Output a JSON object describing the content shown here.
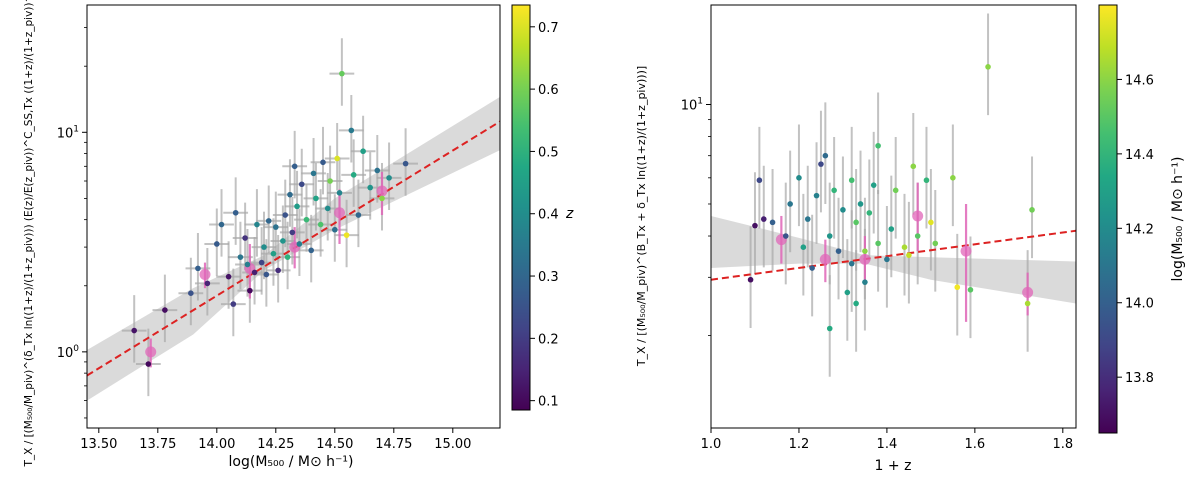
{
  "chart_data": [
    {
      "type": "scatter",
      "title": "",
      "xlabel": "log(M500 / M⊙ h⁻¹)",
      "ylabel": "T_X / [(M500/Mpiv)^(δTx ln((1+z)/(1+zpiv))) (E(z)/E(zpiv))^(C_SS,Tx) ((1+z)/(1+zpiv))^(γTx)]",
      "xscale": "linear",
      "yscale": "log",
      "xlim": [
        13.45,
        15.2
      ],
      "ylim": [
        0.45,
        38
      ],
      "xticks": [
        "13.50",
        "13.75",
        "14.00",
        "14.25",
        "14.50",
        "14.75",
        "15.00"
      ],
      "yticks": [
        "10^0",
        "10^1"
      ],
      "colorbar": {
        "label": "z",
        "range": [
          0.085,
          0.735
        ],
        "ticks": [
          "0.1",
          "0.2",
          "0.3",
          "0.4",
          "0.5",
          "0.6",
          "0.7"
        ]
      },
      "fit_line": {
        "style": "dashed",
        "color": "#dd2222",
        "points": [
          [
            13.45,
            0.78
          ],
          [
            15.2,
            11.2
          ]
        ]
      },
      "confidence_band": {
        "color": "#d3d3d3",
        "points": [
          [
            13.45,
            0.6,
            1.02
          ],
          [
            13.9,
            1.2,
            1.95
          ],
          [
            14.2,
            2.35,
            2.75
          ],
          [
            14.5,
            3.6,
            5.0
          ],
          [
            15.2,
            8.3,
            14.5
          ]
        ]
      },
      "binned_means": [
        {
          "x": 13.72,
          "y": 1.0,
          "yerr": [
            0.85,
            1.15
          ]
        },
        {
          "x": 13.95,
          "y": 2.25,
          "yerr": [
            1.95,
            2.55
          ]
        },
        {
          "x": 14.14,
          "y": 2.4,
          "yerr": [
            1.75,
            3.1
          ]
        },
        {
          "x": 14.33,
          "y": 3.0,
          "yerr": [
            2.4,
            3.7
          ]
        },
        {
          "x": 14.52,
          "y": 4.3,
          "yerr": [
            3.1,
            5.5
          ]
        },
        {
          "x": 14.7,
          "y": 5.4,
          "yerr": [
            4.2,
            6.6
          ]
        }
      ],
      "points": [
        {
          "x": 13.65,
          "y": 1.25,
          "z": 0.12
        },
        {
          "x": 13.71,
          "y": 0.88,
          "z": 0.1
        },
        {
          "x": 13.78,
          "y": 1.55,
          "z": 0.11
        },
        {
          "x": 13.89,
          "y": 1.85,
          "z": 0.25
        },
        {
          "x": 13.92,
          "y": 2.4,
          "z": 0.28
        },
        {
          "x": 13.96,
          "y": 2.05,
          "z": 0.15
        },
        {
          "x": 14.0,
          "y": 3.1,
          "z": 0.27
        },
        {
          "x": 14.02,
          "y": 3.8,
          "z": 0.3
        },
        {
          "x": 14.05,
          "y": 2.2,
          "z": 0.12
        },
        {
          "x": 14.07,
          "y": 1.65,
          "z": 0.2
        },
        {
          "x": 14.08,
          "y": 4.3,
          "z": 0.28
        },
        {
          "x": 14.1,
          "y": 2.7,
          "z": 0.34
        },
        {
          "x": 14.12,
          "y": 3.3,
          "z": 0.18
        },
        {
          "x": 14.13,
          "y": 2.5,
          "z": 0.36
        },
        {
          "x": 14.14,
          "y": 1.9,
          "z": 0.1
        },
        {
          "x": 14.16,
          "y": 2.3,
          "z": 0.14
        },
        {
          "x": 14.17,
          "y": 3.8,
          "z": 0.38
        },
        {
          "x": 14.19,
          "y": 2.55,
          "z": 0.22
        },
        {
          "x": 14.2,
          "y": 3.0,
          "z": 0.4
        },
        {
          "x": 14.21,
          "y": 2.25,
          "z": 0.26
        },
        {
          "x": 14.22,
          "y": 3.95,
          "z": 0.3
        },
        {
          "x": 14.24,
          "y": 2.8,
          "z": 0.45
        },
        {
          "x": 14.25,
          "y": 3.7,
          "z": 0.33
        },
        {
          "x": 14.26,
          "y": 2.35,
          "z": 0.17
        },
        {
          "x": 14.28,
          "y": 3.2,
          "z": 0.42
        },
        {
          "x": 14.29,
          "y": 4.2,
          "z": 0.25
        },
        {
          "x": 14.3,
          "y": 2.7,
          "z": 0.5
        },
        {
          "x": 14.31,
          "y": 5.2,
          "z": 0.31
        },
        {
          "x": 14.32,
          "y": 3.5,
          "z": 0.2
        },
        {
          "x": 14.33,
          "y": 7.0,
          "z": 0.28
        },
        {
          "x": 14.34,
          "y": 4.6,
          "z": 0.44
        },
        {
          "x": 14.35,
          "y": 3.1,
          "z": 0.36
        },
        {
          "x": 14.36,
          "y": 5.8,
          "z": 0.23
        },
        {
          "x": 14.38,
          "y": 4.0,
          "z": 0.52
        },
        {
          "x": 14.4,
          "y": 2.9,
          "z": 0.29
        },
        {
          "x": 14.41,
          "y": 6.5,
          "z": 0.34
        },
        {
          "x": 14.42,
          "y": 5.0,
          "z": 0.46
        },
        {
          "x": 14.44,
          "y": 3.8,
          "z": 0.55
        },
        {
          "x": 14.45,
          "y": 7.3,
          "z": 0.27
        },
        {
          "x": 14.47,
          "y": 4.5,
          "z": 0.4
        },
        {
          "x": 14.48,
          "y": 6.0,
          "z": 0.6
        },
        {
          "x": 14.5,
          "y": 3.6,
          "z": 0.32
        },
        {
          "x": 14.51,
          "y": 7.6,
          "z": 0.7
        },
        {
          "x": 14.52,
          "y": 5.3,
          "z": 0.38
        },
        {
          "x": 14.53,
          "y": 18.5,
          "z": 0.58
        },
        {
          "x": 14.55,
          "y": 3.4,
          "z": 0.72
        },
        {
          "x": 14.57,
          "y": 10.2,
          "z": 0.35
        },
        {
          "x": 14.58,
          "y": 6.4,
          "z": 0.48
        },
        {
          "x": 14.6,
          "y": 4.2,
          "z": 0.3
        },
        {
          "x": 14.62,
          "y": 8.2,
          "z": 0.45
        },
        {
          "x": 14.65,
          "y": 5.6,
          "z": 0.42
        },
        {
          "x": 14.68,
          "y": 6.7,
          "z": 0.33
        },
        {
          "x": 14.7,
          "y": 5.0,
          "z": 0.62
        },
        {
          "x": 14.73,
          "y": 6.2,
          "z": 0.4
        },
        {
          "x": 14.8,
          "y": 7.2,
          "z": 0.26
        }
      ]
    },
    {
      "type": "scatter",
      "title": "",
      "xlabel": "1 + z",
      "ylabel": "T_X / [(M500/Mpiv)^(B_Tx + δTx ln((1+z)/(1+zpiv)))]",
      "xscale": "linear",
      "yscale": "log",
      "xlim": [
        1.0,
        1.83
      ],
      "ylim": [
        1.05,
        20
      ],
      "xticks": [
        "1.0",
        "1.2",
        "1.4",
        "1.6",
        "1.8"
      ],
      "yticks": [
        "10^1"
      ],
      "colorbar": {
        "label": "log(M500 / M⊙ h⁻¹)",
        "range": [
          13.65,
          14.8
        ],
        "ticks": [
          "13.8",
          "14.0",
          "14.2",
          "14.4",
          "14.6"
        ]
      },
      "fit_line": {
        "style": "dashed",
        "color": "#dd2222",
        "points": [
          [
            1.0,
            2.95
          ],
          [
            1.83,
            4.15
          ]
        ]
      },
      "confidence_band": {
        "color": "#d3d3d3",
        "points": [
          [
            1.0,
            3.2,
            4.6
          ],
          [
            1.2,
            3.3,
            3.95
          ],
          [
            1.35,
            3.3,
            3.5
          ],
          [
            1.5,
            2.95,
            3.45
          ],
          [
            1.83,
            2.5,
            3.35
          ]
        ]
      },
      "binned_means": [
        {
          "x": 1.16,
          "y": 3.9,
          "yerr": [
            3.3,
            4.6
          ]
        },
        {
          "x": 1.26,
          "y": 3.4,
          "yerr": [
            2.9,
            3.9
          ]
        },
        {
          "x": 1.35,
          "y": 3.4,
          "yerr": [
            2.9,
            4.0
          ]
        },
        {
          "x": 1.47,
          "y": 4.6,
          "yerr": [
            3.6,
            5.8
          ]
        },
        {
          "x": 1.58,
          "y": 3.6,
          "yerr": [
            2.2,
            5.0
          ]
        },
        {
          "x": 1.72,
          "y": 2.7,
          "yerr": [
            2.3,
            3.1
          ]
        }
      ],
      "points": [
        {
          "x": 1.09,
          "y": 2.95,
          "m": 13.7
        },
        {
          "x": 1.1,
          "y": 4.3,
          "m": 13.7
        },
        {
          "x": 1.11,
          "y": 5.9,
          "m": 13.9
        },
        {
          "x": 1.12,
          "y": 4.5,
          "m": 13.75
        },
        {
          "x": 1.14,
          "y": 4.4,
          "m": 14.0
        },
        {
          "x": 1.17,
          "y": 4.0,
          "m": 13.95
        },
        {
          "x": 1.18,
          "y": 5.0,
          "m": 14.1
        },
        {
          "x": 1.2,
          "y": 6.0,
          "m": 14.2
        },
        {
          "x": 1.21,
          "y": 3.7,
          "m": 14.3
        },
        {
          "x": 1.22,
          "y": 4.5,
          "m": 14.1
        },
        {
          "x": 1.23,
          "y": 3.2,
          "m": 14.0
        },
        {
          "x": 1.24,
          "y": 5.3,
          "m": 14.15
        },
        {
          "x": 1.25,
          "y": 6.6,
          "m": 13.9
        },
        {
          "x": 1.26,
          "y": 7.0,
          "m": 14.05
        },
        {
          "x": 1.27,
          "y": 4.0,
          "m": 14.25
        },
        {
          "x": 1.27,
          "y": 2.1,
          "m": 14.35
        },
        {
          "x": 1.28,
          "y": 5.5,
          "m": 14.4
        },
        {
          "x": 1.29,
          "y": 3.6,
          "m": 14.0
        },
        {
          "x": 1.3,
          "y": 4.8,
          "m": 14.2
        },
        {
          "x": 1.31,
          "y": 2.7,
          "m": 14.3
        },
        {
          "x": 1.32,
          "y": 5.9,
          "m": 14.45
        },
        {
          "x": 1.32,
          "y": 3.3,
          "m": 14.1
        },
        {
          "x": 1.33,
          "y": 4.4,
          "m": 14.5
        },
        {
          "x": 1.33,
          "y": 2.5,
          "m": 14.35
        },
        {
          "x": 1.34,
          "y": 5.0,
          "m": 14.25
        },
        {
          "x": 1.35,
          "y": 3.6,
          "m": 14.6
        },
        {
          "x": 1.35,
          "y": 2.9,
          "m": 14.15
        },
        {
          "x": 1.36,
          "y": 4.7,
          "m": 14.4
        },
        {
          "x": 1.37,
          "y": 5.7,
          "m": 14.3
        },
        {
          "x": 1.38,
          "y": 3.8,
          "m": 14.5
        },
        {
          "x": 1.38,
          "y": 7.5,
          "m": 14.45
        },
        {
          "x": 1.4,
          "y": 3.4,
          "m": 14.1
        },
        {
          "x": 1.41,
          "y": 4.2,
          "m": 14.3
        },
        {
          "x": 1.42,
          "y": 5.5,
          "m": 14.55
        },
        {
          "x": 1.44,
          "y": 3.7,
          "m": 14.65
        },
        {
          "x": 1.45,
          "y": 3.5,
          "m": 14.7
        },
        {
          "x": 1.46,
          "y": 6.5,
          "m": 14.6
        },
        {
          "x": 1.47,
          "y": 4.0,
          "m": 14.5
        },
        {
          "x": 1.49,
          "y": 5.9,
          "m": 14.4
        },
        {
          "x": 1.5,
          "y": 4.4,
          "m": 14.75
        },
        {
          "x": 1.51,
          "y": 3.8,
          "m": 14.55
        },
        {
          "x": 1.55,
          "y": 6.0,
          "m": 14.6
        },
        {
          "x": 1.56,
          "y": 2.8,
          "m": 14.78
        },
        {
          "x": 1.59,
          "y": 2.75,
          "m": 14.5
        },
        {
          "x": 1.63,
          "y": 13.0,
          "m": 14.6
        },
        {
          "x": 1.72,
          "y": 2.5,
          "m": 14.65
        },
        {
          "x": 1.73,
          "y": 4.8,
          "m": 14.55
        }
      ]
    }
  ]
}
